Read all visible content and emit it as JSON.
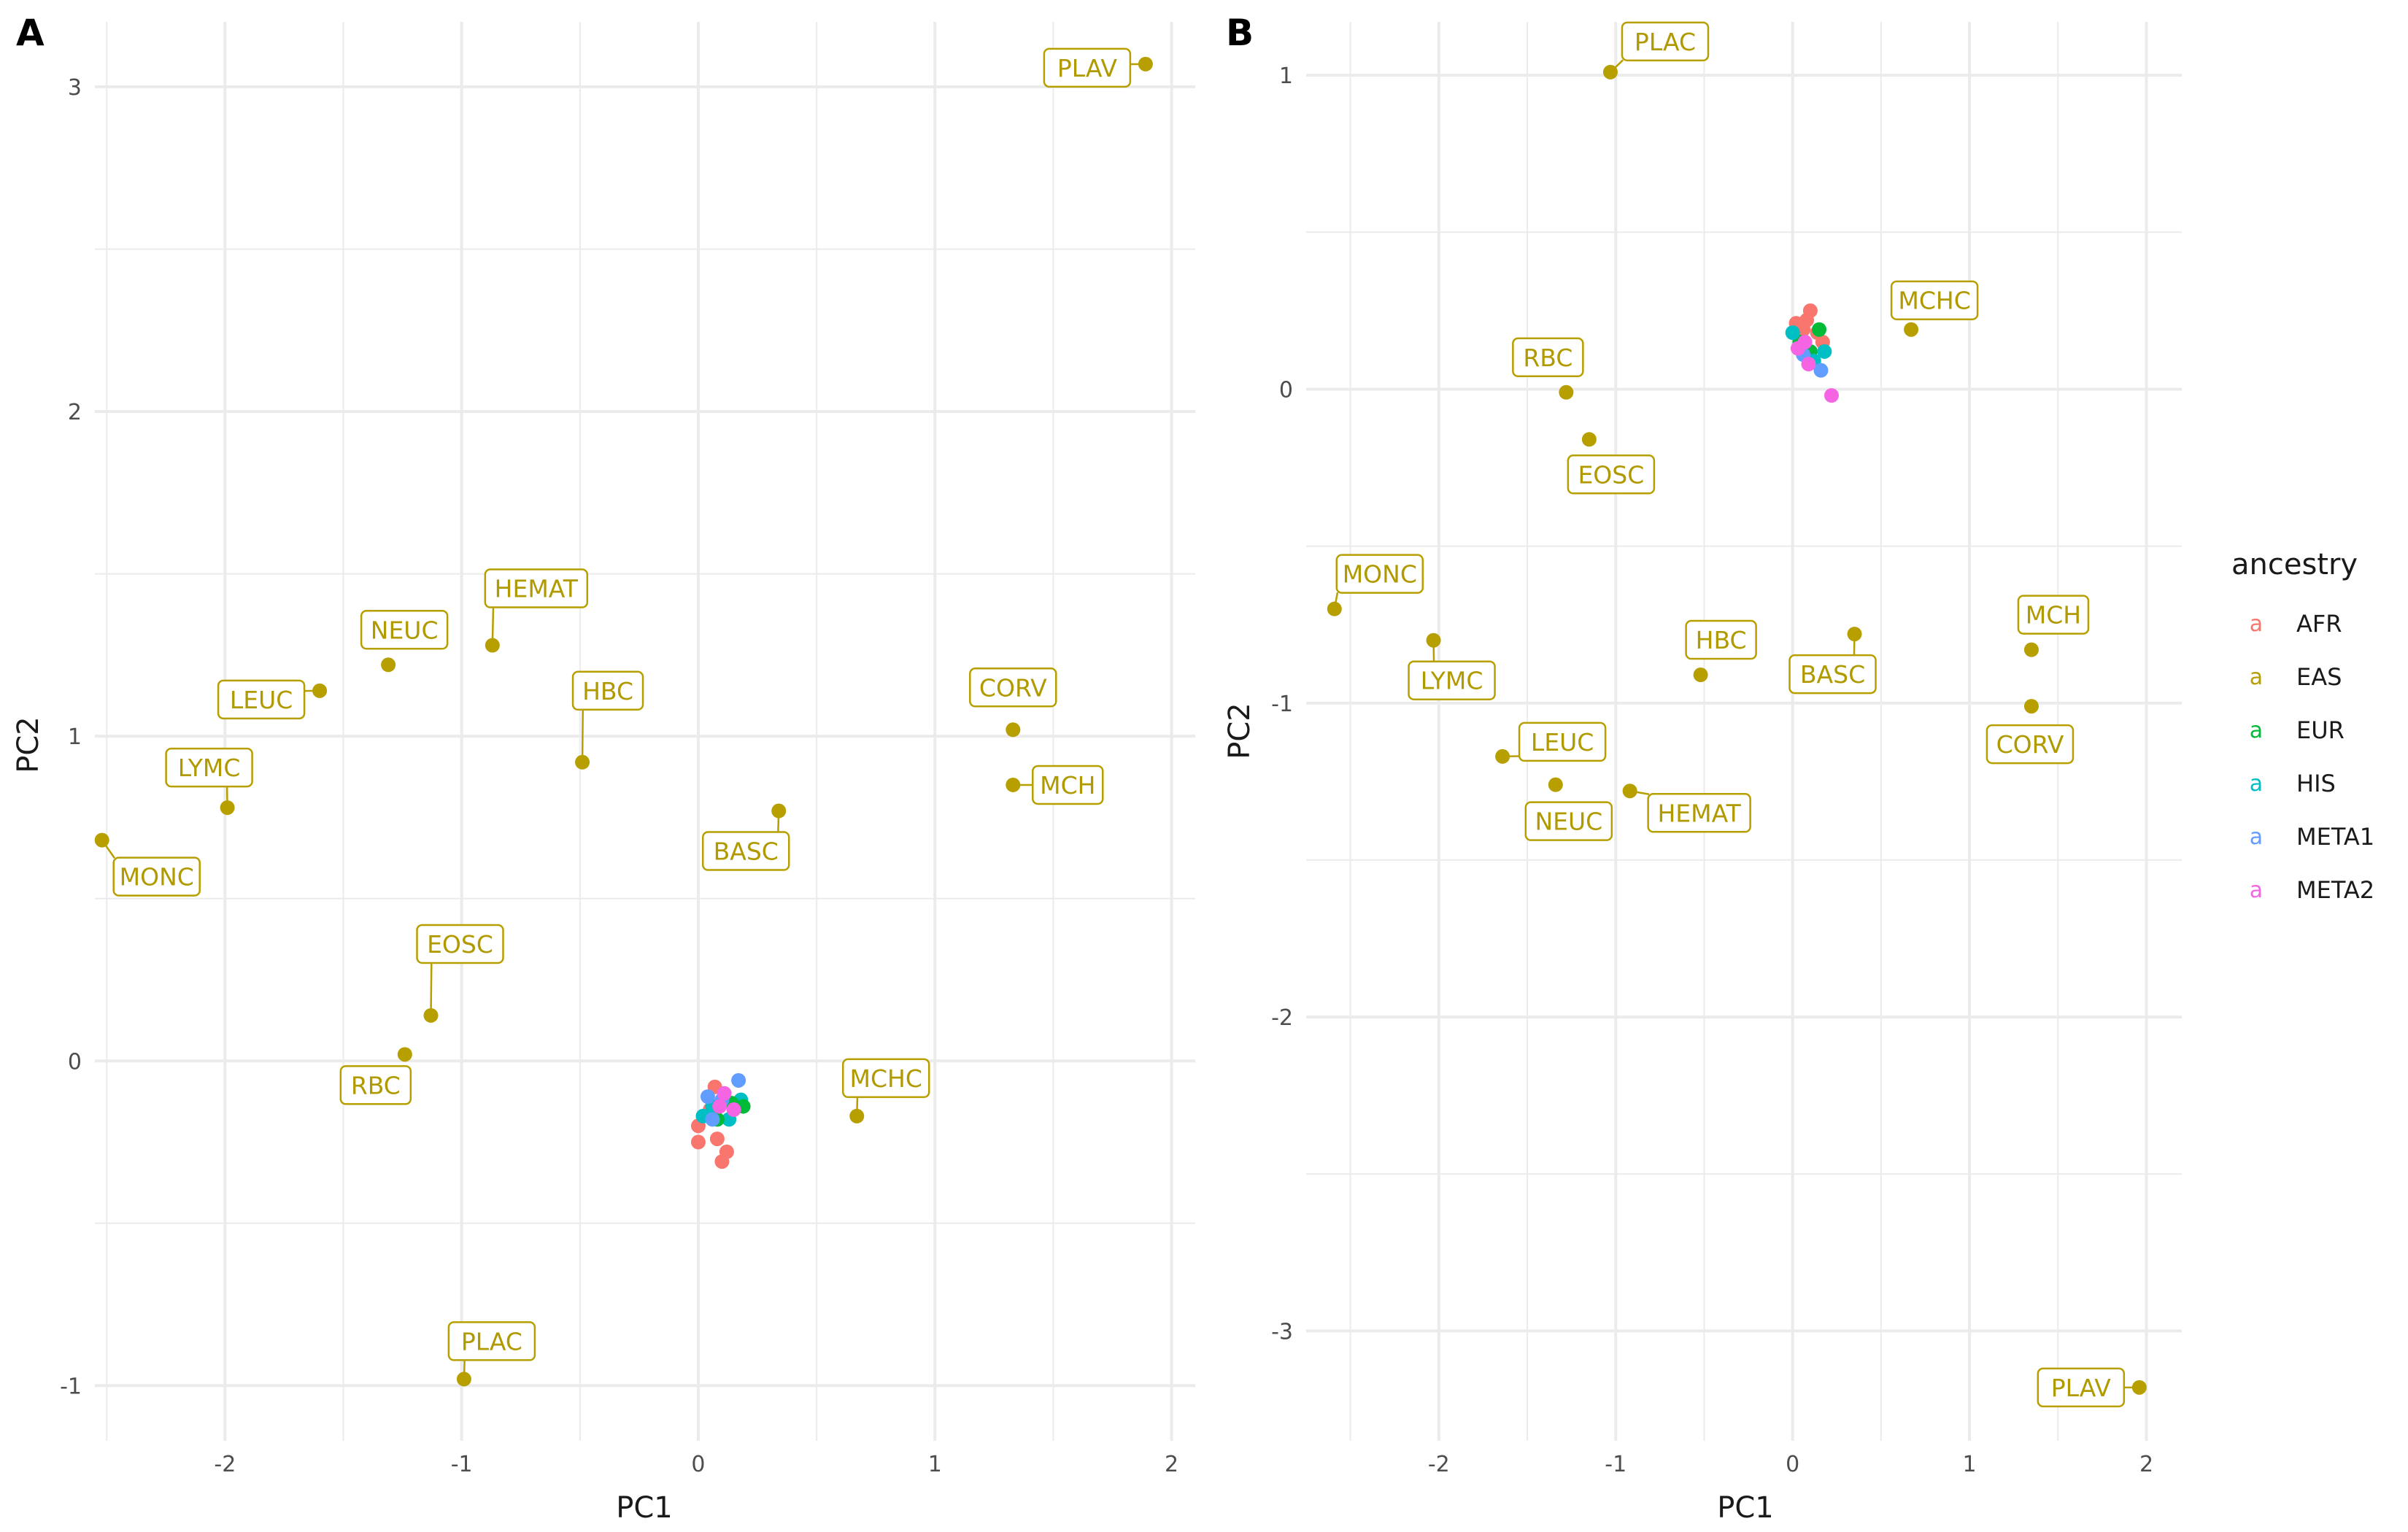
{
  "colors": {
    "AFR": "#F8766D",
    "EAS": "#B79F00",
    "EUR": "#00BA38",
    "HIS": "#00BFC4",
    "META1": "#619CFF",
    "META2": "#F564E3",
    "label_text": "#B09A00",
    "grid": "#EBEBEB"
  },
  "legend": {
    "title": "ancestry",
    "key_glyph": "a",
    "entries": [
      "AFR",
      "EAS",
      "EUR",
      "HIS",
      "META1",
      "META2"
    ]
  },
  "chart_data": [
    {
      "panel": "A",
      "type": "scatter",
      "xlabel": "PC1",
      "ylabel": "PC2",
      "xlim": [
        -2.55,
        2.1
      ],
      "ylim": [
        -1.17,
        3.2
      ],
      "x_ticks": [
        -2,
        -1,
        0,
        1,
        2
      ],
      "y_ticks": [
        -1,
        0,
        1,
        2,
        3
      ],
      "grid": true,
      "labeled_points": [
        {
          "label": "PLAV",
          "x": 1.89,
          "y": 3.07,
          "series": "EAS"
        },
        {
          "label": "NEUC",
          "x": -1.31,
          "y": 1.22,
          "series": "EAS"
        },
        {
          "label": "HEMAT",
          "x": -0.87,
          "y": 1.28,
          "series": "EAS"
        },
        {
          "label": "LEUC",
          "x": -1.6,
          "y": 1.14,
          "series": "EAS"
        },
        {
          "label": "HBC",
          "x": -0.49,
          "y": 0.92,
          "series": "EAS"
        },
        {
          "label": "LYMC",
          "x": -1.99,
          "y": 0.78,
          "series": "EAS"
        },
        {
          "label": "MONC",
          "x": -2.52,
          "y": 0.68,
          "series": "EAS"
        },
        {
          "label": "CORV",
          "x": 1.33,
          "y": 1.02,
          "series": "EAS"
        },
        {
          "label": "MCH",
          "x": 1.33,
          "y": 0.85,
          "series": "EAS"
        },
        {
          "label": "BASC",
          "x": 0.34,
          "y": 0.77,
          "series": "EAS"
        },
        {
          "label": "EOSC",
          "x": -1.13,
          "y": 0.14,
          "series": "EAS"
        },
        {
          "label": "RBC",
          "x": -1.24,
          "y": 0.02,
          "series": "EAS"
        },
        {
          "label": "MCHC",
          "x": 0.67,
          "y": -0.17,
          "series": "EAS"
        },
        {
          "label": "PLAC",
          "x": -0.99,
          "y": -0.98,
          "series": "EAS"
        }
      ],
      "cluster_points": [
        {
          "series": "AFR",
          "x": 0.0,
          "y": -0.25
        },
        {
          "series": "AFR",
          "x": 0.0,
          "y": -0.2
        },
        {
          "series": "AFR",
          "x": 0.08,
          "y": -0.24
        },
        {
          "series": "AFR",
          "x": 0.12,
          "y": -0.28
        },
        {
          "series": "AFR",
          "x": 0.1,
          "y": -0.31
        },
        {
          "series": "AFR",
          "x": 0.07,
          "y": -0.08
        },
        {
          "series": "AFR",
          "x": 0.05,
          "y": -0.15
        },
        {
          "series": "HIS",
          "x": 0.02,
          "y": -0.17
        },
        {
          "series": "HIS",
          "x": 0.06,
          "y": -0.14
        },
        {
          "series": "HIS",
          "x": 0.13,
          "y": -0.18
        },
        {
          "series": "HIS",
          "x": 0.18,
          "y": -0.12
        },
        {
          "series": "EUR",
          "x": 0.08,
          "y": -0.18
        },
        {
          "series": "EUR",
          "x": 0.14,
          "y": -0.13
        },
        {
          "series": "EUR",
          "x": 0.19,
          "y": -0.14
        },
        {
          "series": "META1",
          "x": 0.17,
          "y": -0.06
        },
        {
          "series": "META1",
          "x": 0.1,
          "y": -0.12
        },
        {
          "series": "META1",
          "x": 0.04,
          "y": -0.11
        },
        {
          "series": "META1",
          "x": 0.06,
          "y": -0.18
        },
        {
          "series": "META2",
          "x": 0.11,
          "y": -0.1
        },
        {
          "series": "META2",
          "x": 0.15,
          "y": -0.15
        },
        {
          "series": "META2",
          "x": 0.09,
          "y": -0.14
        }
      ]
    },
    {
      "panel": "B",
      "type": "scatter",
      "xlabel": "PC1",
      "ylabel": "PC2",
      "xlim": [
        -2.75,
        2.2
      ],
      "ylim": [
        -3.35,
        1.17
      ],
      "x_ticks": [
        -2,
        -1,
        0,
        1,
        2
      ],
      "y_ticks": [
        -3,
        -2,
        -1,
        0,
        1
      ],
      "grid": true,
      "labeled_points": [
        {
          "label": "PLAC",
          "x": -1.03,
          "y": 1.01,
          "series": "EAS"
        },
        {
          "label": "MCHC",
          "x": 0.67,
          "y": 0.19,
          "series": "EAS"
        },
        {
          "label": "RBC",
          "x": -1.28,
          "y": -0.01,
          "series": "EAS"
        },
        {
          "label": "EOSC",
          "x": -1.15,
          "y": -0.16,
          "series": "EAS"
        },
        {
          "label": "MONC",
          "x": -2.59,
          "y": -0.7,
          "series": "EAS"
        },
        {
          "label": "LYMC",
          "x": -2.03,
          "y": -0.8,
          "series": "EAS"
        },
        {
          "label": "HBC",
          "x": -0.52,
          "y": -0.91,
          "series": "EAS"
        },
        {
          "label": "BASC",
          "x": 0.35,
          "y": -0.78,
          "series": "EAS"
        },
        {
          "label": "MCH",
          "x": 1.35,
          "y": -0.83,
          "series": "EAS"
        },
        {
          "label": "CORV",
          "x": 1.35,
          "y": -1.01,
          "series": "EAS"
        },
        {
          "label": "LEUC",
          "x": -1.64,
          "y": -1.17,
          "series": "EAS"
        },
        {
          "label": "NEUC",
          "x": -1.34,
          "y": -1.26,
          "series": "EAS"
        },
        {
          "label": "HEMAT",
          "x": -0.92,
          "y": -1.28,
          "series": "EAS"
        },
        {
          "label": "PLAV",
          "x": 1.96,
          "y": -3.18,
          "series": "EAS"
        }
      ],
      "cluster_points": [
        {
          "series": "AFR",
          "x": 0.02,
          "y": 0.21
        },
        {
          "series": "AFR",
          "x": 0.1,
          "y": 0.25
        },
        {
          "series": "AFR",
          "x": 0.06,
          "y": 0.19
        },
        {
          "series": "AFR",
          "x": 0.14,
          "y": 0.18
        },
        {
          "series": "AFR",
          "x": 0.17,
          "y": 0.15
        },
        {
          "series": "AFR",
          "x": 0.08,
          "y": 0.22
        },
        {
          "series": "EUR",
          "x": 0.1,
          "y": 0.12
        },
        {
          "series": "EUR",
          "x": 0.15,
          "y": 0.19
        },
        {
          "series": "EUR",
          "x": 0.04,
          "y": 0.15
        },
        {
          "series": "HIS",
          "x": 0.0,
          "y": 0.18
        },
        {
          "series": "HIS",
          "x": 0.18,
          "y": 0.12
        },
        {
          "series": "HIS",
          "x": 0.12,
          "y": 0.09
        },
        {
          "series": "META1",
          "x": 0.16,
          "y": 0.06
        },
        {
          "series": "META1",
          "x": 0.06,
          "y": 0.11
        },
        {
          "series": "META2",
          "x": 0.22,
          "y": -0.02
        },
        {
          "series": "META2",
          "x": 0.03,
          "y": 0.13
        },
        {
          "series": "META2",
          "x": 0.09,
          "y": 0.08
        },
        {
          "series": "META2",
          "x": 0.07,
          "y": 0.15
        }
      ]
    }
  ]
}
